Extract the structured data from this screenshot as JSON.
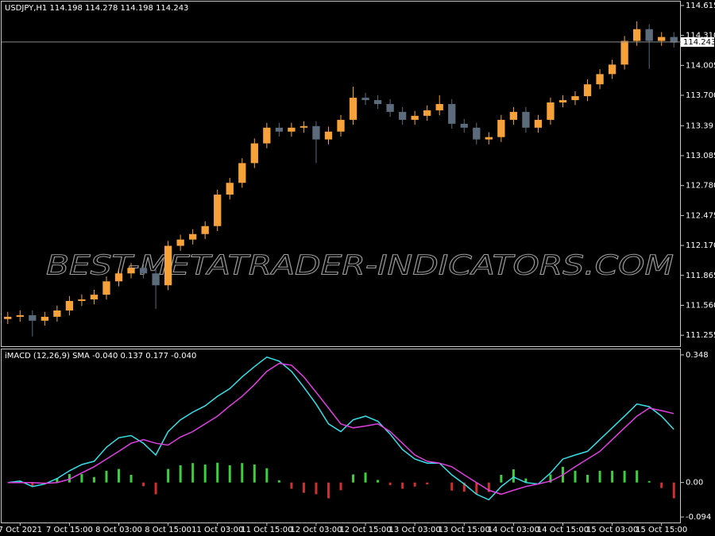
{
  "chart_data": [
    {
      "type": "candlestick",
      "title": "USDJPY,H1 114.198 114.278 114.198 114.243",
      "watermark": "BEST-METATRADER-INDICATORS.COM",
      "current_price": 114.243,
      "bull_color": "#f7a13a",
      "bear_color": "#5b6b7c",
      "price_line_color": "#8a8a8a",
      "ylim": [
        111.143,
        114.655
      ],
      "yticks": [
        114.615,
        {
          "value": 114.31,
          "label": "114.310"
        },
        114.005,
        {
          "value": 113.7,
          "label": "113.700"
        },
        113.39,
        113.085,
        {
          "value": 112.78,
          "label": "112.780"
        },
        112.475,
        {
          "value": 112.17,
          "label": "112.170"
        },
        111.865,
        {
          "value": 111.56,
          "label": "111.560"
        },
        111.255
      ],
      "open": [
        111.42,
        111.443,
        111.459,
        111.403,
        111.443,
        111.507,
        111.604,
        111.62,
        111.668,
        111.804,
        111.885,
        111.941,
        111.885,
        111.764,
        112.166,
        112.23,
        112.286,
        112.367,
        112.688,
        112.808,
        113.009,
        113.21,
        113.37,
        113.33,
        113.37,
        113.386,
        113.25,
        113.33,
        113.45,
        113.675,
        113.651,
        113.611,
        113.531,
        113.45,
        113.491,
        113.547,
        113.611,
        113.41,
        113.37,
        113.25,
        113.274,
        113.45,
        113.531,
        113.37,
        113.45,
        113.627,
        113.651,
        113.691,
        113.812,
        113.916,
        114.013,
        114.254,
        114.374,
        114.254,
        114.294
      ],
      "high": [
        111.493,
        111.509,
        111.509,
        111.493,
        111.557,
        111.654,
        111.67,
        111.718,
        111.854,
        111.935,
        111.991,
        111.991,
        111.935,
        112.216,
        112.28,
        112.336,
        112.417,
        112.738,
        112.858,
        113.059,
        113.26,
        113.42,
        113.42,
        113.42,
        113.436,
        113.436,
        113.38,
        113.5,
        113.788,
        113.725,
        113.701,
        113.661,
        113.581,
        113.541,
        113.597,
        113.7,
        113.661,
        113.46,
        113.42,
        113.324,
        113.5,
        113.581,
        113.581,
        113.5,
        113.677,
        113.701,
        113.741,
        113.862,
        113.966,
        114.063,
        114.304,
        114.454,
        114.424,
        114.344,
        114.344
      ],
      "low": [
        111.37,
        111.393,
        111.242,
        111.353,
        111.393,
        111.457,
        111.554,
        111.57,
        111.618,
        111.754,
        111.835,
        111.835,
        111.523,
        111.714,
        112.116,
        112.18,
        112.236,
        112.317,
        112.638,
        112.758,
        112.959,
        113.16,
        113.28,
        113.28,
        113.32,
        113.009,
        113.2,
        113.28,
        113.4,
        113.601,
        113.561,
        113.481,
        113.4,
        113.4,
        113.441,
        113.497,
        113.36,
        113.32,
        113.2,
        113.2,
        113.224,
        113.4,
        113.32,
        113.32,
        113.4,
        113.577,
        113.601,
        113.641,
        113.762,
        113.866,
        113.963,
        114.204,
        113.97,
        114.204,
        114.187
      ],
      "close": [
        111.443,
        111.459,
        111.403,
        111.443,
        111.507,
        111.604,
        111.62,
        111.668,
        111.804,
        111.885,
        111.941,
        111.885,
        111.764,
        112.166,
        112.23,
        112.286,
        112.367,
        112.688,
        112.808,
        113.009,
        113.21,
        113.37,
        113.33,
        113.37,
        113.386,
        113.25,
        113.33,
        113.45,
        113.675,
        113.651,
        113.611,
        113.531,
        113.45,
        113.491,
        113.547,
        113.611,
        113.41,
        113.37,
        113.25,
        113.274,
        113.45,
        113.531,
        113.37,
        113.45,
        113.627,
        113.651,
        113.691,
        113.812,
        113.916,
        114.013,
        114.254,
        114.374,
        114.254,
        114.294,
        114.237
      ]
    },
    {
      "type": "macd",
      "title": "iMACD (12,26,9) SMA -0.040 0.137 0.177 -0.040",
      "ylim": [
        -0.109,
        0.363
      ],
      "yticks": [
        0.348,
        {
          "value": 0,
          "label": "0.00"
        },
        -0.094
      ],
      "categories": [
        null,
        "7 Oct 2021",
        null,
        null,
        null,
        "7 Oct 15:00",
        null,
        null,
        null,
        "8 Oct 03:00",
        null,
        null,
        null,
        "8 Oct 15:00",
        null,
        null,
        null,
        "11 Oct 03:00",
        null,
        null,
        null,
        "11 Oct 15:00",
        null,
        null,
        null,
        "12 Oct 03:00",
        null,
        null,
        null,
        "12 Oct 15:00",
        null,
        null,
        null,
        "13 Oct 03:00",
        null,
        null,
        null,
        "13 Oct 15:00",
        null,
        null,
        null,
        "14 Oct 03:00",
        null,
        null,
        null,
        "14 Oct 15:00",
        null,
        null,
        null,
        "15 Oct 03:00",
        null,
        null,
        null,
        "15 Oct 15:00",
        null
      ],
      "series": [
        {
          "color": "#35e0e8",
          "values": [
            0,
            0.004,
            -0.011,
            -0.004,
            0.011,
            0.032,
            0.049,
            0.058,
            0.096,
            0.122,
            0.128,
            0.107,
            0.075,
            0.139,
            0.171,
            0.192,
            0.209,
            0.235,
            0.256,
            0.288,
            0.316,
            0.342,
            0.331,
            0.303,
            0.26,
            0.214,
            0.16,
            0.139,
            0.171,
            0.181,
            0.167,
            0.132,
            0.09,
            0.064,
            0.053,
            0.053,
            0.021,
            -0.004,
            -0.032,
            -0.047,
            -0.011,
            0.015,
            0,
            -0.004,
            0.026,
            0.064,
            0.075,
            0.085,
            0.117,
            0.149,
            0.181,
            0.214,
            0.207,
            0.181,
            0.145
          ]
        },
        {
          "color": "#e040e0",
          "values": [
            0,
            0,
            0,
            -0.002,
            0,
            0.009,
            0.026,
            0.043,
            0.064,
            0.085,
            0.107,
            0.117,
            0.107,
            0.102,
            0.124,
            0.139,
            0.16,
            0.181,
            0.209,
            0.235,
            0.267,
            0.303,
            0.325,
            0.32,
            0.288,
            0.246,
            0.203,
            0.16,
            0.149,
            0.154,
            0.16,
            0.139,
            0.107,
            0.075,
            0.058,
            0.053,
            0.043,
            0.021,
            0,
            -0.021,
            -0.032,
            -0.021,
            -0.011,
            -0.004,
            0.004,
            0.021,
            0.043,
            0.064,
            0.085,
            0.117,
            0.149,
            0.181,
            0.203,
            0.196,
            0.188
          ]
        }
      ],
      "histogram": {
        "up_color": "#3ecf3e",
        "down_color": "#d03030",
        "values": [
          0,
          0.004,
          -0.011,
          -0.002,
          0.011,
          0.023,
          0.023,
          0.015,
          0.032,
          0.037,
          0.021,
          -0.01,
          -0.032,
          0.037,
          0.047,
          0.053,
          0.049,
          0.054,
          0.047,
          0.053,
          0.049,
          0.039,
          0.006,
          -0.017,
          -0.028,
          -0.032,
          -0.043,
          -0.021,
          0.022,
          0.027,
          0.007,
          -0.007,
          -0.017,
          -0.011,
          -0.005,
          0,
          -0.022,
          -0.025,
          -0.032,
          -0.026,
          0.021,
          0.036,
          0.011,
          0,
          0.022,
          0.043,
          0.032,
          0.021,
          0.032,
          0.032,
          0.032,
          0.033,
          0.004,
          -0.015,
          -0.043
        ]
      }
    }
  ]
}
